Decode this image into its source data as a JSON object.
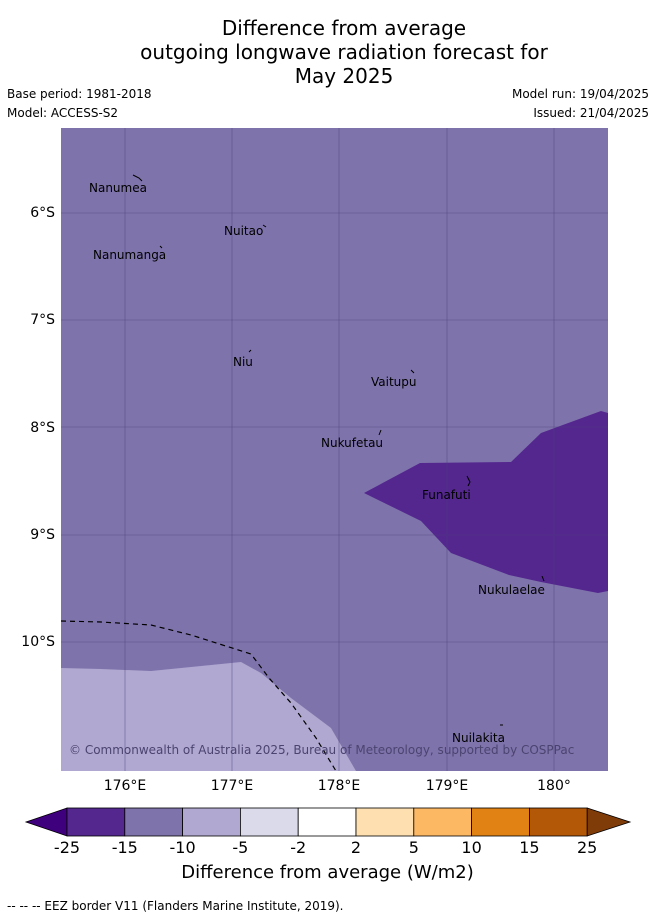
{
  "title": {
    "line1": "Difference from average",
    "line2": "outgoing longwave radiation forecast for",
    "line3": "May 2025"
  },
  "meta": {
    "base_period": "Base period: 1981-2018",
    "model": "Model: ACCESS-S2",
    "model_run": "Model run: 19/04/2025",
    "issued": "Issued: 21/04/2025"
  },
  "map": {
    "lat_labels": [
      "6°S",
      "7°S",
      "8°S",
      "9°S",
      "10°S"
    ],
    "lon_labels": [
      "176°E",
      "177°E",
      "178°E",
      "179°E",
      "180°"
    ],
    "places": [
      "Nanumea",
      "Nuitao",
      "Nanumanga",
      "Niu",
      "Vaitupu",
      "Nukufetau",
      "Funafuti",
      "Nukulaelae",
      "Nuilakita"
    ],
    "copyright": "© Commonwealth of Australia 2025, Bureau of Meteorology, supported by COSPPac",
    "colors": {
      "band_-15_-10": "#7f73ab",
      "band_-25_-15": "#54278f",
      "band_-10_-5": "#b0a8d0"
    }
  },
  "colorbar": {
    "ticks": [
      "-25",
      "-15",
      "-10",
      "-5",
      "-2",
      "2",
      "5",
      "10",
      "15",
      "25"
    ],
    "colors": [
      "#3f007d",
      "#54278f",
      "#7f73ab",
      "#b0a8d0",
      "#dadaeb",
      "#ffffff",
      "#fedfb0",
      "#fdb863",
      "#e08214",
      "#b35806",
      "#7f3b08"
    ],
    "label": "Difference from average (W/m2)"
  },
  "footnote": "-- -- -- EEZ border V11 (Flanders Marine Institute, 2019)."
}
